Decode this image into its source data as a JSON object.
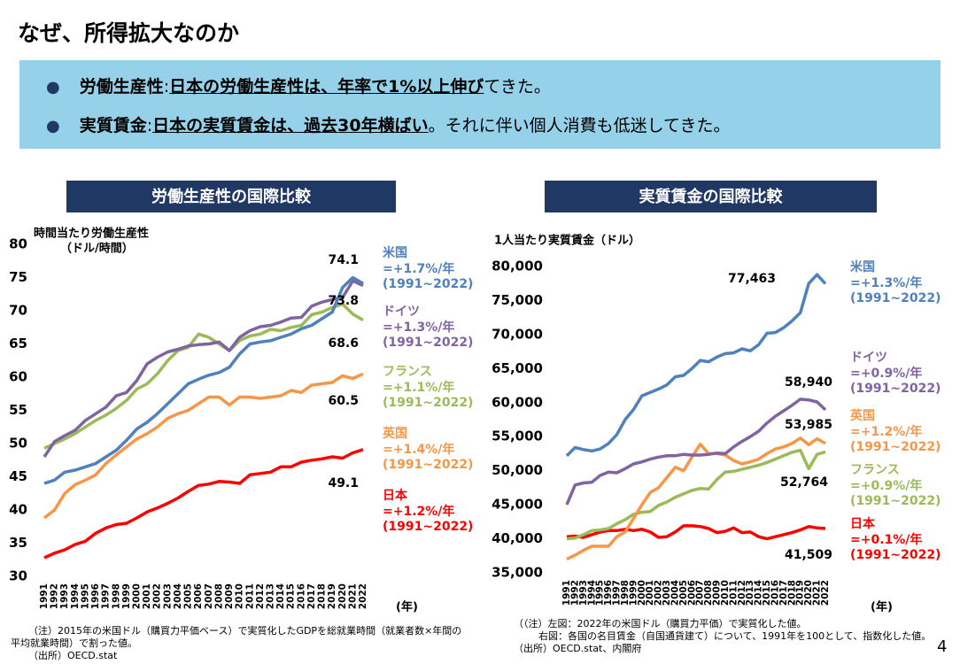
{
  "header": {
    "title": "なぜ、所得拡大なのか",
    "bullets": [
      [
        {
          "text": "労働生産性",
          "bold": true
        },
        {
          "text": ":"
        },
        {
          "text": "日本の労働生産性は、年率で1%以上伸び",
          "bold": true,
          "underline": true
        },
        {
          "text": "てきた。"
        }
      ],
      [
        {
          "text": "実質賃金",
          "bold": true
        },
        {
          "text": ":"
        },
        {
          "text": "日本の実質賃金は、過去30年横ばい",
          "bold": true,
          "underline": true
        },
        {
          "text": "。それに伴い個人消費も低迷してきた。"
        }
      ]
    ]
  },
  "chart_data": [
    {
      "type": "line",
      "title": "労働生産性の国際比較",
      "y_label": [
        "時間当たり労働生産性",
        "（ドル/時間）"
      ],
      "x_label": "(年)",
      "categories": [
        "1991",
        "1992",
        "1993",
        "1994",
        "1995",
        "1996",
        "1997",
        "1998",
        "1999",
        "2000",
        "2001",
        "2002",
        "2003",
        "2004",
        "2005",
        "2006",
        "2007",
        "2008",
        "2009",
        "2010",
        "2011",
        "2012",
        "2013",
        "2014",
        "2015",
        "2016",
        "2017",
        "2018",
        "2019",
        "2020",
        "2021",
        "2022"
      ],
      "ylim": [
        30,
        80
      ],
      "yticks": [
        30,
        35,
        40,
        45,
        50,
        55,
        60,
        65,
        70,
        75,
        80
      ],
      "grid": false,
      "series": [
        {
          "name": "米国",
          "growth": "=+1.7%/年",
          "period": "(1991~2022)",
          "color": "#4f81bd",
          "values": [
            44.0,
            44.5,
            45.7,
            46.0,
            46.5,
            47.0,
            48.0,
            49.0,
            50.5,
            52.2,
            53.2,
            54.5,
            56.0,
            57.5,
            59.0,
            59.7,
            60.3,
            60.7,
            61.5,
            63.5,
            65.0,
            65.3,
            65.5,
            66.0,
            66.5,
            67.3,
            67.8,
            68.8,
            69.8,
            73.5,
            75.0,
            74.1
          ]
        },
        {
          "name": "ドイツ",
          "growth": "=+1.3%/年",
          "period": "(1991~2022)",
          "color": "#8064a2",
          "values": [
            48.0,
            50.3,
            51.2,
            52.0,
            53.5,
            54.5,
            55.5,
            57.2,
            57.7,
            59.5,
            62.0,
            63.0,
            63.8,
            64.2,
            64.7,
            64.9,
            65.0,
            65.3,
            64.0,
            66.0,
            67.0,
            67.6,
            67.8,
            68.3,
            68.9,
            69.0,
            70.7,
            71.3,
            71.7,
            72.0,
            74.5,
            73.8
          ]
        },
        {
          "name": "フランス",
          "growth": "=+1.1%/年",
          "period": "(1991~2022)",
          "color": "#9bbb59",
          "values": [
            49.3,
            50.0,
            50.7,
            51.5,
            52.5,
            53.5,
            54.3,
            55.3,
            56.5,
            58.2,
            59.0,
            60.5,
            62.5,
            64.0,
            64.5,
            66.5,
            66.0,
            65.0,
            64.0,
            65.5,
            66.2,
            66.5,
            67.2,
            67.0,
            67.5,
            67.8,
            69.4,
            69.8,
            70.5,
            71.0,
            69.5,
            68.6
          ]
        },
        {
          "name": "英国",
          "growth": "=+1.4%/年",
          "period": "(1991~2022)",
          "color": "#f79646",
          "values": [
            38.8,
            40.0,
            42.5,
            43.8,
            44.5,
            45.3,
            47.0,
            48.3,
            49.5,
            50.7,
            51.5,
            52.5,
            53.8,
            54.5,
            55.0,
            56.0,
            57.0,
            57.0,
            55.8,
            57.0,
            57.0,
            56.8,
            57.0,
            57.2,
            58.0,
            57.7,
            58.8,
            59.0,
            59.2,
            60.2,
            59.8,
            60.5
          ]
        },
        {
          "name": "日本",
          "growth": "=+1.2%/年",
          "period": "(1991~2022)",
          "color": "#ff0000",
          "values": [
            32.8,
            33.5,
            34.0,
            34.8,
            35.3,
            36.5,
            37.3,
            37.8,
            38.0,
            38.8,
            39.7,
            40.3,
            41.0,
            41.8,
            42.8,
            43.7,
            43.9,
            44.3,
            44.2,
            44.0,
            45.3,
            45.5,
            45.7,
            46.5,
            46.5,
            47.2,
            47.5,
            47.7,
            48.0,
            47.8,
            48.6,
            49.1
          ]
        }
      ]
    },
    {
      "type": "line",
      "title": "実質賃金の国際比較",
      "y_label": [
        "1人当たり実質賃金（ドル）"
      ],
      "x_label": "(年)",
      "categories": [
        "1991",
        "1992",
        "1993",
        "1994",
        "1995",
        "1996",
        "1997",
        "1998",
        "1999",
        "2000",
        "2001",
        "2002",
        "2003",
        "2004",
        "2005",
        "2006",
        "2007",
        "2008",
        "2009",
        "2010",
        "2011",
        "2012",
        "2013",
        "2014",
        "2015",
        "2016",
        "2017",
        "2018",
        "2019",
        "2020",
        "2021",
        "2022"
      ],
      "ylim": [
        35000,
        80000
      ],
      "yticks": [
        {
          "value": 35000,
          "label": "35,000"
        },
        {
          "value": 40000,
          "label": "40,000"
        },
        {
          "value": 45000,
          "label": "45,000"
        },
        {
          "value": 50000,
          "label": "50,000"
        },
        {
          "value": 55000,
          "label": "55,000"
        },
        {
          "value": 60000,
          "label": "60,000"
        },
        {
          "value": 65000,
          "label": "65,000"
        },
        {
          "value": 70000,
          "label": "70,000"
        },
        {
          "value": 75000,
          "label": "75,000"
        },
        {
          "value": 80000,
          "label": "80,000"
        }
      ],
      "grid": false,
      "series": [
        {
          "name": "米国",
          "growth": "=+1.3%/年",
          "period": "(1991~2022)",
          "color": "#4f81bd",
          "values": [
            52200,
            53400,
            53100,
            52900,
            53200,
            54000,
            55300,
            57500,
            59000,
            61000,
            61500,
            62000,
            62600,
            63800,
            64000,
            65000,
            66200,
            66000,
            66700,
            67200,
            67300,
            67900,
            67600,
            68500,
            70200,
            70300,
            71000,
            72000,
            73200,
            77500,
            78800,
            77463
          ],
          "value_labels": [
            null,
            null,
            null,
            null,
            null,
            null,
            null,
            null,
            null,
            null,
            null,
            null,
            null,
            null,
            null,
            null,
            null,
            null,
            null,
            null,
            null,
            null,
            null,
            null,
            null,
            null,
            null,
            null,
            null,
            null,
            null,
            "77,463"
          ]
        },
        {
          "name": "ドイツ",
          "growth": "=+0.9%/年",
          "period": "(1991~2022)",
          "color": "#8064a2",
          "values": [
            45000,
            47900,
            48200,
            48300,
            49300,
            49800,
            49700,
            50300,
            51000,
            51300,
            51700,
            52000,
            52200,
            52200,
            52400,
            52300,
            52300,
            52400,
            52600,
            52500,
            53500,
            54300,
            55000,
            55800,
            57000,
            58000,
            58800,
            59600,
            60500,
            60400,
            60100,
            58940
          ],
          "value_labels": [
            null,
            null,
            null,
            null,
            null,
            null,
            null,
            null,
            null,
            null,
            null,
            null,
            null,
            null,
            null,
            null,
            null,
            null,
            null,
            null,
            null,
            null,
            null,
            null,
            null,
            null,
            null,
            null,
            null,
            null,
            null,
            "58,940"
          ]
        },
        {
          "name": "英国",
          "growth": "=+1.2%/年",
          "period": "(1991~2022)",
          "color": "#f79646",
          "values": [
            37000,
            37600,
            38300,
            38900,
            38900,
            38900,
            40300,
            41000,
            43000,
            45000,
            46800,
            47500,
            49000,
            50500,
            50000,
            52000,
            53900,
            52500,
            52500,
            52300,
            51500,
            51000,
            51300,
            51700,
            52500,
            53200,
            53500,
            54000,
            54800,
            53800,
            54700,
            53985
          ],
          "value_labels": [
            null,
            null,
            null,
            null,
            null,
            null,
            null,
            null,
            null,
            null,
            null,
            null,
            null,
            null,
            null,
            null,
            null,
            null,
            null,
            null,
            null,
            null,
            null,
            null,
            null,
            null,
            null,
            null,
            null,
            null,
            null,
            "53,985"
          ]
        },
        {
          "name": "フランス",
          "growth": "=+0.9%/年",
          "period": "(1991~2022)",
          "color": "#9bbb59",
          "values": [
            40000,
            40100,
            40600,
            41200,
            41300,
            41500,
            42200,
            42800,
            43600,
            43900,
            44000,
            44900,
            45400,
            46100,
            46600,
            47100,
            47400,
            47300,
            48700,
            49800,
            49900,
            50200,
            50500,
            50800,
            51200,
            51700,
            52200,
            52700,
            53000,
            50300,
            52400,
            52764
          ],
          "value_labels": [
            null,
            null,
            null,
            null,
            null,
            null,
            null,
            null,
            null,
            null,
            null,
            null,
            null,
            null,
            null,
            null,
            null,
            null,
            null,
            null,
            null,
            null,
            null,
            null,
            null,
            null,
            null,
            null,
            null,
            null,
            null,
            "52,764"
          ]
        },
        {
          "name": "日本",
          "growth": "=+0.1%/年",
          "period": "(1991~2022)",
          "color": "#ff0000",
          "values": [
            40300,
            40400,
            40200,
            40600,
            41000,
            41200,
            41200,
            41400,
            41200,
            41400,
            41000,
            40200,
            40300,
            41000,
            41900,
            41900,
            41800,
            41500,
            40900,
            41100,
            41600,
            40900,
            41000,
            40300,
            40000,
            40300,
            40600,
            40900,
            41300,
            41800,
            41600,
            41509
          ],
          "value_labels": [
            null,
            null,
            null,
            null,
            null,
            null,
            null,
            null,
            null,
            null,
            null,
            null,
            null,
            null,
            null,
            null,
            null,
            null,
            null,
            null,
            null,
            null,
            null,
            null,
            null,
            null,
            null,
            null,
            null,
            null,
            null,
            "41,509"
          ]
        }
      ]
    }
  ],
  "notes": {
    "left": [
      "（注）2015年の米国ドル（購買力平価ベース）で実質化したGDPを総就業時間（就業者数×年間の",
      "平均就業時間）で割った値。",
      "（出所）OECD.stat"
    ],
    "right": [
      "（（注）左図：2022年の米国ドル（購買力平価）で実質化した値。",
      "右図：各国の名目賃金（自国通貨建て）について、1991年を100として、指数化した値。",
      "（出所）OECD.stat、内閣府"
    ]
  },
  "page_number": "4"
}
